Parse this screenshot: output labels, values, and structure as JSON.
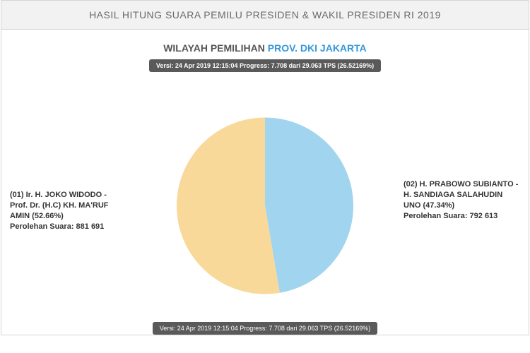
{
  "header": {
    "title": "HASIL HITUNG SUARA PEMILU PRESIDEN & WAKIL PRESIDEN RI 2019"
  },
  "subheader": {
    "label": "WILAYAH PEMILIHAN ",
    "region": "PROV. DKI JAKARTA"
  },
  "version_badge": "Versi: 24 Apr 2019 12:15:04 Progress: 7.708 dari 29.063 TPS (26.52169%)",
  "pie": {
    "type": "pie",
    "radius": 125,
    "background_color": "#ffffff",
    "slices": [
      {
        "id": "candidate-01",
        "label_lines": [
          "(01) Ir. H. JOKO WIDODO -",
          "Prof. Dr. (H.C) KH. MA'RUF",
          "AMIN (52.66%)",
          "Perolehan Suara: 881 691"
        ],
        "value_pct": 52.66,
        "votes": 881691,
        "color": "#f9d99a"
      },
      {
        "id": "candidate-02",
        "label_lines": [
          "(02) H. PRABOWO SUBIANTO -",
          "H. SANDIAGA SALAHUDIN",
          "UNO (47.34%)",
          "Perolehan Suara: 792 613"
        ],
        "value_pct": 47.34,
        "votes": 792613,
        "color": "#a1d4ef"
      }
    ],
    "leader_line_color": "#333333"
  }
}
